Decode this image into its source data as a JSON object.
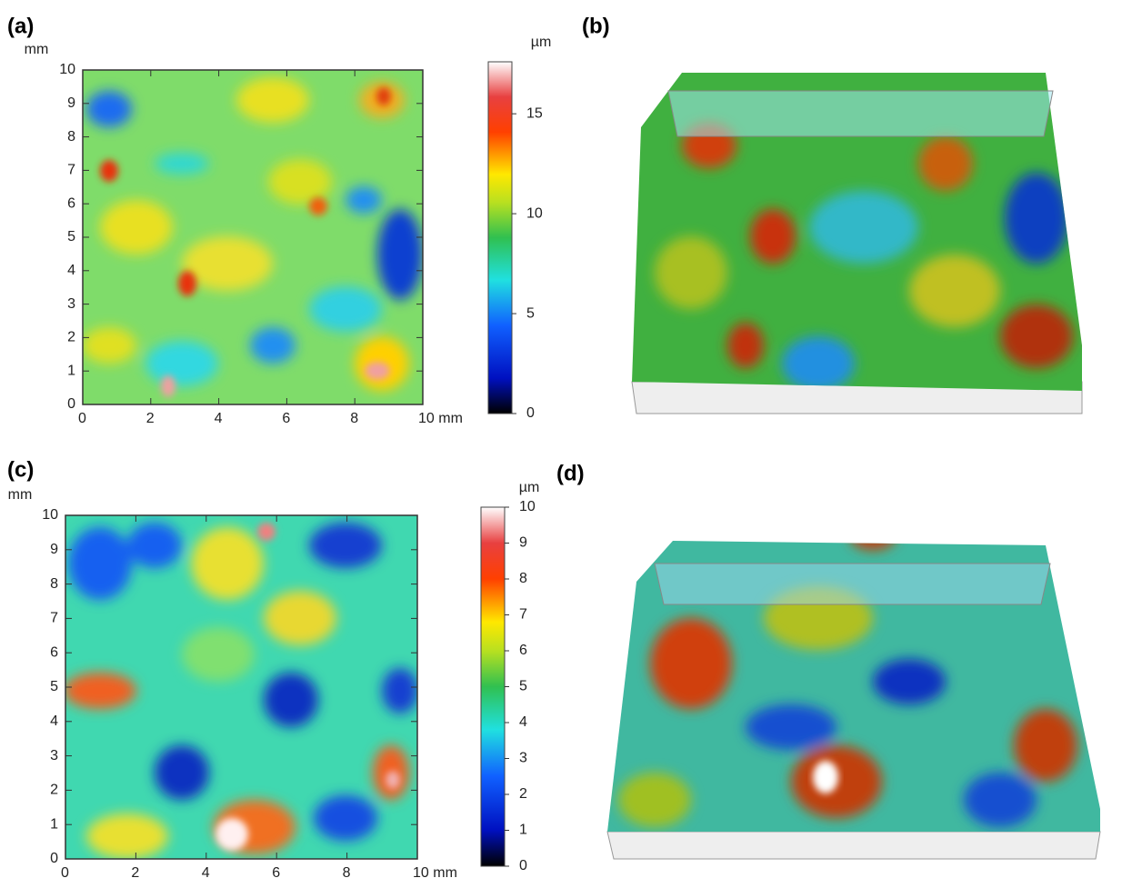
{
  "chart_data": [
    {
      "type": "heatmap",
      "title": "(a)",
      "ylabel": "mm",
      "xlim": [
        0,
        10
      ],
      "ylim": [
        0,
        10
      ],
      "xticks": [
        0,
        2,
        4,
        6,
        8,
        {
          "value": 10,
          "label": "10 mm"
        }
      ],
      "yticks": [
        0,
        1,
        2,
        3,
        4,
        5,
        6,
        7,
        8,
        9,
        10
      ],
      "colorbar": {
        "label": "µm",
        "lim": [
          0,
          17.6
        ],
        "ticks": [
          0,
          5,
          10,
          15
        ]
      }
    },
    {
      "type": "surface",
      "title": "(b)"
    },
    {
      "type": "heatmap",
      "title": "(c)",
      "ylabel": "mm",
      "xlim": [
        0,
        10
      ],
      "ylim": [
        0,
        10
      ],
      "xticks": [
        0,
        2,
        4,
        6,
        8,
        {
          "value": 10,
          "label": "10 mm"
        }
      ],
      "yticks": [
        0,
        1,
        2,
        3,
        4,
        5,
        6,
        7,
        8,
        9,
        10
      ],
      "colorbar": {
        "label": "µm",
        "lim": [
          0,
          10
        ],
        "ticks": [
          0,
          1,
          2,
          3,
          4,
          5,
          6,
          7,
          8,
          9,
          10
        ]
      }
    },
    {
      "type": "surface",
      "title": "(d)"
    }
  ]
}
